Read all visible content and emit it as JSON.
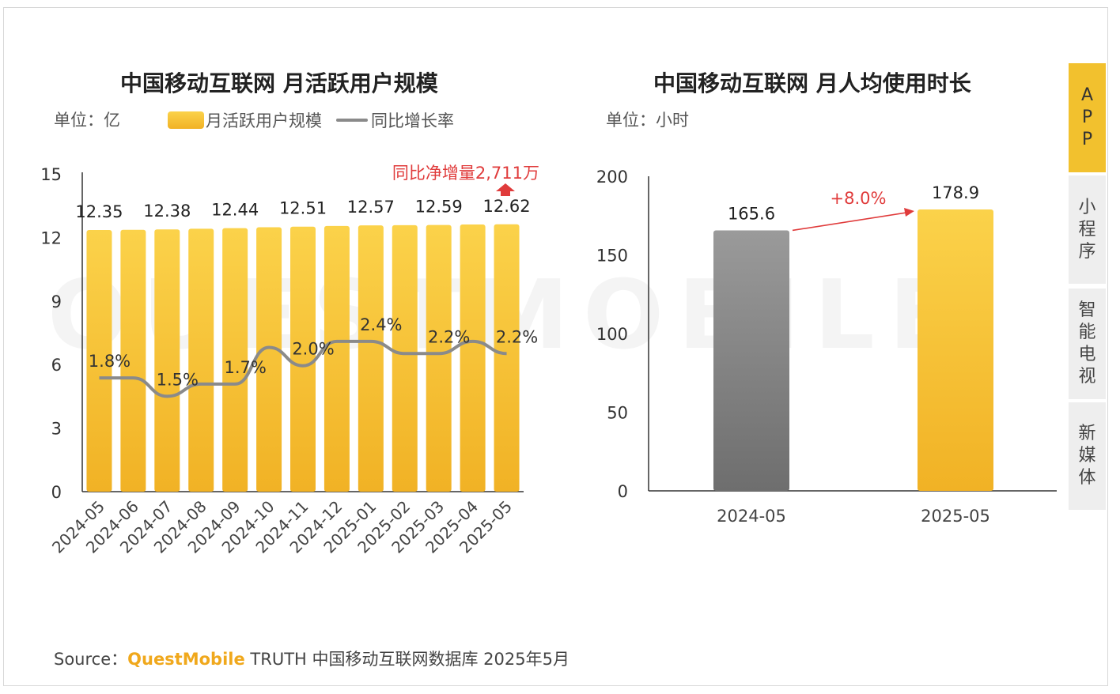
{
  "watermark": "QUESTMOBILE",
  "side_tabs": [
    {
      "label": "APP",
      "chars": [
        "A",
        "P",
        "P"
      ],
      "active": true
    },
    {
      "label": "小程序",
      "chars": [
        "小",
        "程",
        "序"
      ],
      "active": false
    },
    {
      "label": "智能电视",
      "chars": [
        "智",
        "能",
        "电",
        "视"
      ],
      "active": false
    },
    {
      "label": "新媒体",
      "chars": [
        "新",
        "媒",
        "体"
      ],
      "active": false
    }
  ],
  "source": {
    "prefix": "Source：",
    "brand": "QuestMobile",
    "suffix": " TRUTH 中国移动互联网数据库 2025年5月"
  },
  "colors": {
    "bar_yellow_top": "#fbd24a",
    "bar_yellow_bottom": "#f1b225",
    "bar_gray_top": "#9a9a9a",
    "bar_gray_bottom": "#6e6e6e",
    "line_gray": "#8a8a8a",
    "accent_red": "#e03b3b"
  },
  "chart_data": [
    {
      "type": "bar",
      "title": "中国移动互联网 月活跃用户规模",
      "unit": "单位：亿",
      "legend": [
        "月活跃用户规模",
        "同比增长率"
      ],
      "annotation": "同比净增量2,711万",
      "categories": [
        "2024-05",
        "2024-06",
        "2024-07",
        "2024-08",
        "2024-09",
        "2024-10",
        "2024-11",
        "2024-12",
        "2025-01",
        "2025-02",
        "2025-03",
        "2025-04",
        "2025-05"
      ],
      "series": [
        {
          "name": "月活跃用户规模",
          "type": "bar",
          "values": [
            12.35,
            12.36,
            12.38,
            12.41,
            12.44,
            12.48,
            12.51,
            12.54,
            12.57,
            12.58,
            12.59,
            12.61,
            12.62
          ]
        },
        {
          "name": "同比增长率",
          "type": "line",
          "values": [
            1.8,
            1.8,
            1.5,
            1.7,
            1.7,
            2.3,
            2.0,
            2.4,
            2.4,
            2.2,
            2.2,
            2.4,
            2.2
          ]
        }
      ],
      "bar_labels": [
        {
          "index": 0,
          "text": "12.35"
        },
        {
          "index": 2,
          "text": "12.38"
        },
        {
          "index": 4,
          "text": "12.44"
        },
        {
          "index": 6,
          "text": "12.51"
        },
        {
          "index": 8,
          "text": "12.57"
        },
        {
          "index": 10,
          "text": "12.59"
        },
        {
          "index": 12,
          "text": "12.62"
        }
      ],
      "line_labels": [
        {
          "index": 0,
          "text": "1.8%"
        },
        {
          "index": 2,
          "text": "1.5%"
        },
        {
          "index": 4,
          "text": "1.7%"
        },
        {
          "index": 6,
          "text": "2.0%"
        },
        {
          "index": 8,
          "text": "2.4%"
        },
        {
          "index": 10,
          "text": "2.2%"
        },
        {
          "index": 12,
          "text": "2.2%"
        }
      ],
      "yticks": [
        0,
        3,
        6,
        9,
        12,
        15
      ],
      "ylim": [
        0,
        15
      ]
    },
    {
      "type": "bar",
      "title": "中国移动互联网 月人均使用时长",
      "unit": "单位：小时",
      "categories": [
        "2024-05",
        "2025-05"
      ],
      "values": [
        165.6,
        178.9
      ],
      "value_labels": [
        "165.6",
        "178.9"
      ],
      "annotation": "+8.0%",
      "yticks": [
        0,
        50,
        100,
        150,
        200
      ],
      "ylim": [
        0,
        200
      ]
    }
  ]
}
